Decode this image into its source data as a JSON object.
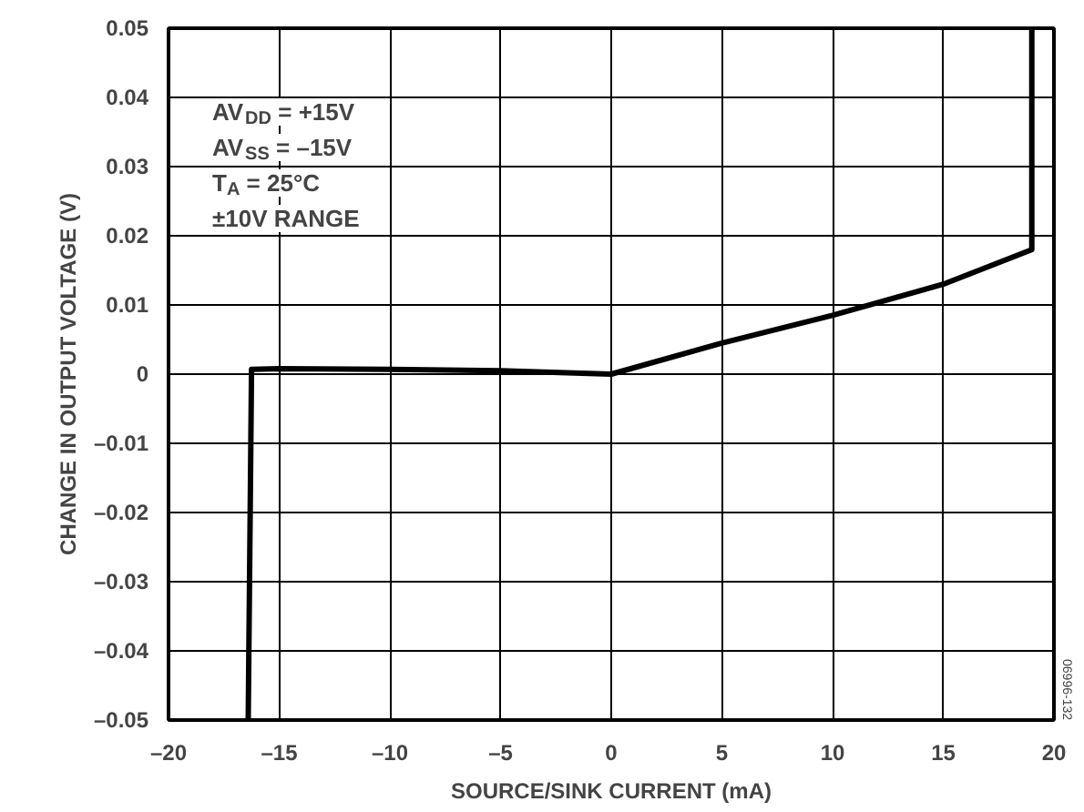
{
  "chart_data": {
    "type": "line",
    "xlabel": "SOURCE/SINK CURRENT (mA)",
    "ylabel": "CHANGE IN OUTPUT VOLTAGE (V)",
    "x": [
      -16.4,
      -16.25,
      -15,
      -10,
      -5,
      -3,
      0,
      5,
      10,
      15,
      19,
      19
    ],
    "series": [
      {
        "color": "#000000",
        "values": [
          -0.05,
          0.0007,
          0.0008,
          0.0007,
          0.0005,
          0.0003,
          0.0,
          0.0045,
          0.0085,
          0.013,
          0.018,
          0.05
        ]
      }
    ],
    "xlim": [
      -20,
      20
    ],
    "xticks": [
      {
        "value": -20,
        "label": "–20"
      },
      {
        "value": -15,
        "label": "–15"
      },
      {
        "value": -10,
        "label": "–10"
      },
      {
        "value": -5,
        "label": "–5"
      },
      0,
      5,
      10,
      15,
      20
    ],
    "ylim": [
      -0.05,
      0.05
    ],
    "yticks": [
      {
        "value": -0.05,
        "label": "–0.05"
      },
      {
        "value": -0.04,
        "label": "–0.04"
      },
      {
        "value": -0.03,
        "label": "–0.03"
      },
      {
        "value": -0.02,
        "label": "–0.02"
      },
      {
        "value": -0.01,
        "label": "–0.01"
      },
      0,
      0.01,
      0.02,
      0.03,
      0.04,
      0.05
    ],
    "grid": true,
    "marker": "none",
    "line_style": "solid",
    "annotations": [
      "AV$_{DD}$ = +15V",
      "AV$_{SS}$ = –15V",
      "T$_{A}$ = 25°C",
      "±10V RANGE",
      "06996-132"
    ]
  }
}
